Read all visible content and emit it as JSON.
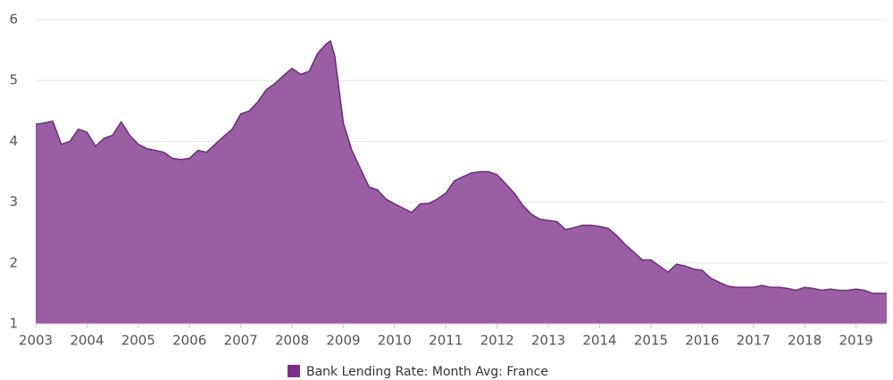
{
  "chart_data": {
    "type": "area",
    "x": [
      2003,
      2003.167,
      2003.333,
      2003.5,
      2003.667,
      2003.833,
      2004,
      2004.167,
      2004.333,
      2004.5,
      2004.667,
      2004.833,
      2005,
      2005.167,
      2005.333,
      2005.5,
      2005.667,
      2005.833,
      2006,
      2006.167,
      2006.333,
      2006.5,
      2006.667,
      2006.833,
      2007,
      2007.167,
      2007.333,
      2007.5,
      2007.667,
      2007.833,
      2008,
      2008.167,
      2008.333,
      2008.5,
      2008.667,
      2008.75,
      2008.833,
      2009,
      2009.167,
      2009.333,
      2009.5,
      2009.667,
      2009.833,
      2010,
      2010.167,
      2010.333,
      2010.5,
      2010.667,
      2010.833,
      2011,
      2011.167,
      2011.333,
      2011.5,
      2011.667,
      2011.833,
      2012,
      2012.167,
      2012.333,
      2012.5,
      2012.667,
      2012.833,
      2013,
      2013.167,
      2013.333,
      2013.5,
      2013.667,
      2013.833,
      2014,
      2014.167,
      2014.333,
      2014.5,
      2014.667,
      2014.833,
      2015,
      2015.167,
      2015.333,
      2015.5,
      2015.667,
      2015.833,
      2016,
      2016.167,
      2016.333,
      2016.5,
      2016.667,
      2016.833,
      2017,
      2017.167,
      2017.333,
      2017.5,
      2017.667,
      2017.833,
      2018,
      2018.167,
      2018.333,
      2018.5,
      2018.667,
      2018.833,
      2019,
      2019.167,
      2019.333,
      2019.5,
      2019.6
    ],
    "series": [
      {
        "name": "Bank Lending Rate: Month Avg: France",
        "color": "#9a5fa2",
        "line_color": "#6e2a7e",
        "legend_color": "#7b2d8a",
        "values": [
          4.28,
          4.3,
          4.33,
          3.95,
          4.0,
          4.2,
          4.15,
          3.92,
          4.05,
          4.1,
          4.32,
          4.1,
          3.95,
          3.88,
          3.85,
          3.82,
          3.72,
          3.7,
          3.72,
          3.85,
          3.82,
          3.95,
          4.08,
          4.2,
          4.45,
          4.5,
          4.65,
          4.85,
          4.95,
          5.08,
          5.2,
          5.1,
          5.15,
          5.45,
          5.6,
          5.65,
          5.4,
          4.3,
          3.85,
          3.55,
          3.25,
          3.2,
          3.05,
          2.97,
          2.9,
          2.83,
          2.97,
          2.98,
          3.05,
          3.15,
          3.35,
          3.42,
          3.48,
          3.5,
          3.5,
          3.45,
          3.3,
          3.15,
          2.95,
          2.8,
          2.72,
          2.7,
          2.68,
          2.55,
          2.58,
          2.62,
          2.62,
          2.6,
          2.57,
          2.45,
          2.3,
          2.18,
          2.05,
          2.05,
          1.95,
          1.85,
          1.98,
          1.95,
          1.9,
          1.88,
          1.75,
          1.68,
          1.62,
          1.6,
          1.6,
          1.6,
          1.63,
          1.6,
          1.6,
          1.58,
          1.55,
          1.6,
          1.58,
          1.55,
          1.57,
          1.55,
          1.55,
          1.57,
          1.55,
          1.5,
          1.5,
          1.5
        ]
      }
    ],
    "xlim": [
      2003,
      2019.6
    ],
    "xticks": [
      2003,
      2004,
      2005,
      2006,
      2007,
      2008,
      2009,
      2010,
      2011,
      2012,
      2013,
      2014,
      2015,
      2016,
      2017,
      2018,
      2019
    ],
    "ylim": [
      1,
      6
    ],
    "yticks": [
      1,
      2,
      3,
      4,
      5,
      6
    ],
    "grid": true
  }
}
